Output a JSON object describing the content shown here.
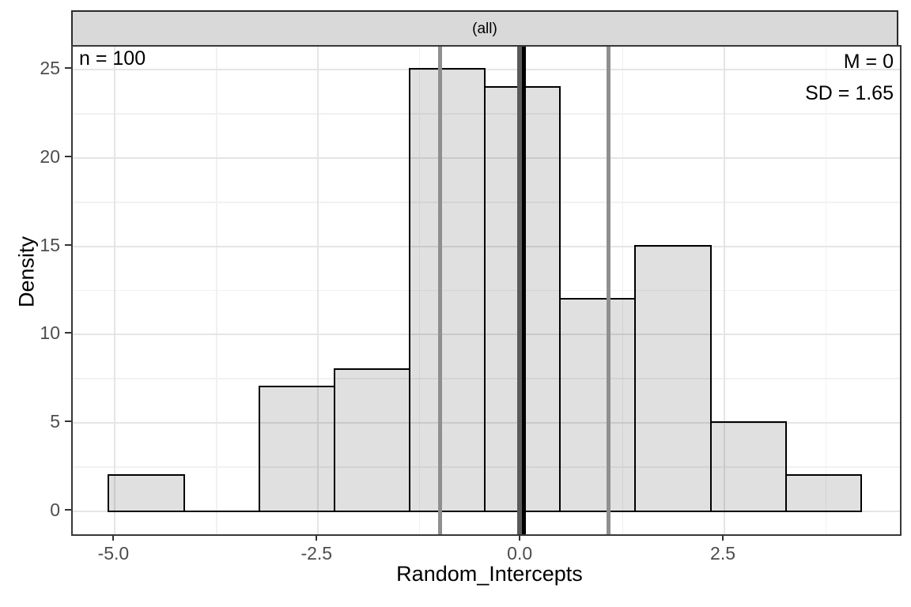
{
  "title_strip": "(all)",
  "annotations": {
    "n": "n = 100",
    "m": "M = 0",
    "sd": "SD = 1.65"
  },
  "x_axis": {
    "title": "Random_Intercepts",
    "tick_labels": [
      "-5.0",
      "-2.5",
      "0.0",
      "2.5"
    ]
  },
  "y_axis": {
    "title": "Density",
    "tick_labels": [
      "0",
      "5",
      "10",
      "15",
      "20",
      "25"
    ]
  },
  "chart_data": {
    "type": "bar",
    "subtype": "histogram",
    "title": "(all)",
    "xlabel": "Random_Intercepts",
    "ylabel": "Density",
    "n": 100,
    "mean": 0,
    "sd": 1.65,
    "xlim": [
      -5.52,
      4.66
    ],
    "ylim": [
      -1.31,
      26.31
    ],
    "x_ticks": [
      -5.0,
      -2.5,
      0.0,
      2.5
    ],
    "y_ticks": [
      0,
      5,
      10,
      15,
      20,
      25
    ],
    "x_minor_ticks": [
      -3.75,
      -1.25,
      1.25,
      3.75
    ],
    "y_minor_ticks": [
      2.5,
      7.5,
      12.5,
      17.5,
      22.5
    ],
    "bins": {
      "start": -5.078,
      "width": 0.926,
      "counts": [
        2,
        0,
        7,
        8,
        25,
        24,
        12,
        15,
        5,
        2
      ]
    },
    "vlines": [
      {
        "x": -1.0,
        "color": "#8f8f8f",
        "width": 5,
        "role": "ref-minus-one"
      },
      {
        "x": 1.07,
        "color": "#8f8f8f",
        "width": 5,
        "role": "ref-plus-one"
      },
      {
        "x": -0.02,
        "color": "#5a5a5a",
        "width": 6,
        "role": "zero-line"
      },
      {
        "x": 0.03,
        "color": "#000000",
        "width": 5,
        "role": "mean-line"
      }
    ],
    "grid": true,
    "legend": false
  },
  "colors": {
    "bar_fill": "rgba(0,0,0,0.12)",
    "bar_border": "#000000",
    "strip_bg": "#D9D9D9",
    "grid_major": "#E5E5E5",
    "grid_minor": "#F1F1F1",
    "tick_color": "#333333",
    "tick_label_color": "#4d4d4d"
  }
}
